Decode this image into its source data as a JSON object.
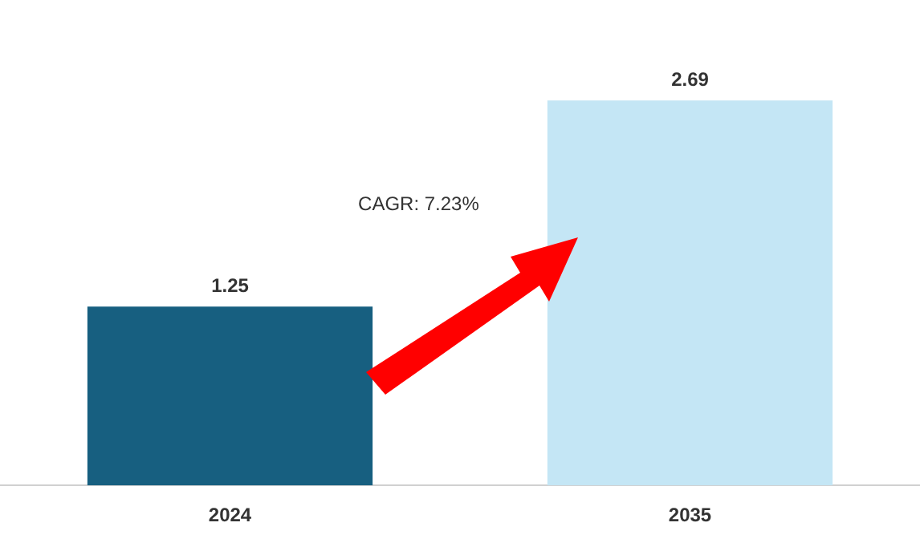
{
  "chart_data": {
    "type": "bar",
    "categories": [
      "2024",
      "2035"
    ],
    "values": [
      1.25,
      2.69
    ],
    "colors": [
      "#175f80",
      "#c4e6f5"
    ],
    "data_labels": true,
    "grid": false,
    "legend": false,
    "annotations": [
      "CAGR: 7.23%"
    ]
  }
}
